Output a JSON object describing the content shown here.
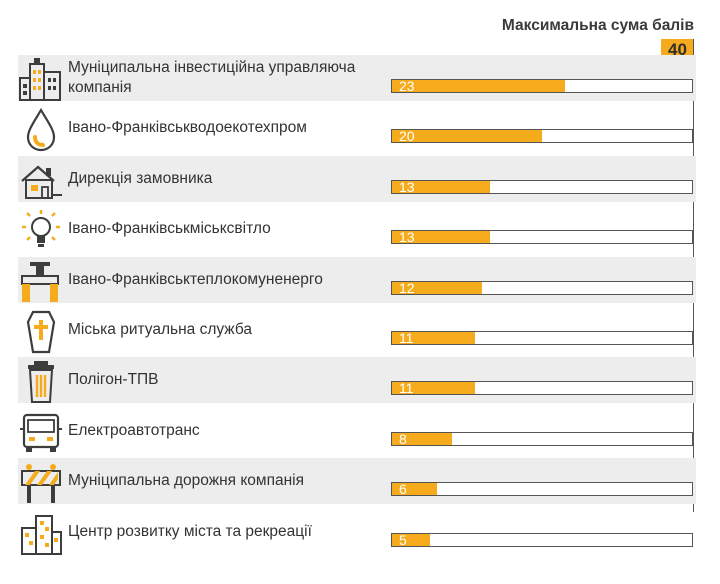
{
  "chart_data": {
    "type": "bar",
    "orientation": "horizontal",
    "title": "Максимальна сума балів",
    "max_value": 40,
    "xlim": [
      0,
      40
    ],
    "categories": [
      "Муніципальна інвестиційна управляюча компанія",
      "Івано-Франківськводоекотехпром",
      "Дирекція замовника",
      "Івано-Франківськміськсвітло",
      "Івано-Франківськтеплокомуненерго",
      "Міська ритуальна служба",
      "Полігон-ТПВ",
      "Електроавтотранс",
      "Муніципальна дорожня компанія",
      "Центр розвитку міста та рекреації"
    ],
    "values": [
      23,
      20,
      13,
      13,
      12,
      11,
      11,
      8,
      6,
      5
    ],
    "bar_color": "#f5ab1b",
    "icons": [
      "buildings-icon",
      "water-drop-icon",
      "house-icon",
      "light-bulb-icon",
      "pipe-valve-icon",
      "coffin-cross-icon",
      "trash-bin-icon",
      "trolleybus-icon",
      "road-barrier-icon",
      "city-blocks-icon"
    ]
  }
}
